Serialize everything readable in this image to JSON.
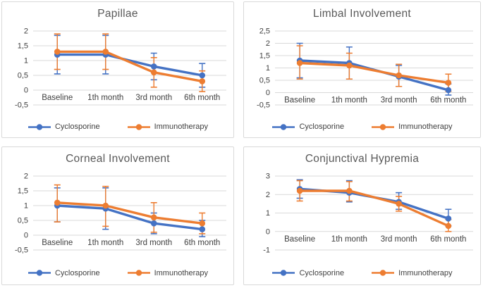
{
  "window": {
    "background": "#FFFFFF"
  },
  "colors": {
    "cyclosporine": "#4472C4",
    "immunotherapy": "#ED7D31",
    "gridline": "#D9D9D9",
    "panel_border": "#D9D9D9",
    "title_text": "#595959",
    "axis_text": "#404040"
  },
  "chart_data": [
    {
      "type": "line",
      "title": "Papillae",
      "categories": [
        "Baseline",
        "1th month",
        "3rd month",
        "6th month"
      ],
      "ylim": [
        -0.5,
        2
      ],
      "grid": true,
      "legend_position": "bottom",
      "yticks": [
        {
          "v": 2,
          "label": "2"
        },
        {
          "v": 1.5,
          "label": "1,5"
        },
        {
          "v": 1,
          "label": "1"
        },
        {
          "v": 0.5,
          "label": "0,5"
        },
        {
          "v": 0,
          "label": "0"
        },
        {
          "v": -0.5,
          "label": "-0,5"
        }
      ],
      "series": [
        {
          "name": "Cyclosporine",
          "color": "#4472C4",
          "values": [
            1.2,
            1.2,
            0.8,
            0.5
          ],
          "err_lo": [
            0.55,
            0.55,
            0.35,
            0.1
          ],
          "err_hi": [
            1.85,
            1.85,
            1.25,
            0.9
          ]
        },
        {
          "name": "Immunotherapy",
          "color": "#ED7D31",
          "values": [
            1.3,
            1.3,
            0.6,
            0.3
          ],
          "err_lo": [
            0.7,
            0.7,
            0.1,
            -0.05
          ],
          "err_hi": [
            1.9,
            1.9,
            1.1,
            0.65
          ]
        }
      ]
    },
    {
      "type": "line",
      "title": "Limbal Involvement",
      "categories": [
        "Baseline",
        "1th month",
        "3rd month",
        "6th month"
      ],
      "ylim": [
        -0.5,
        2.5
      ],
      "grid": true,
      "legend_position": "bottom",
      "yticks": [
        {
          "v": 2.5,
          "label": "2,5"
        },
        {
          "v": 2,
          "label": "2"
        },
        {
          "v": 1.5,
          "label": "1,5"
        },
        {
          "v": 1,
          "label": "1"
        },
        {
          "v": 0.5,
          "label": "0,5"
        },
        {
          "v": 0,
          "label": "0"
        },
        {
          "v": -0.5,
          "label": "-0,5"
        }
      ],
      "series": [
        {
          "name": "Cyclosporine",
          "color": "#4472C4",
          "values": [
            1.3,
            1.2,
            0.65,
            0.1
          ],
          "err_lo": [
            0.6,
            0.55,
            0.25,
            -0.1
          ],
          "err_hi": [
            2.0,
            1.85,
            1.1,
            0.35
          ]
        },
        {
          "name": "Immunotherapy",
          "color": "#ED7D31",
          "values": [
            1.2,
            1.1,
            0.7,
            0.4
          ],
          "err_lo": [
            0.55,
            0.55,
            0.25,
            0.05
          ],
          "err_hi": [
            1.9,
            1.6,
            1.15,
            0.75
          ]
        }
      ]
    },
    {
      "type": "line",
      "title": "Corneal Involvement",
      "categories": [
        "Baseline",
        "1th month",
        "3rd month",
        "6th month"
      ],
      "ylim": [
        -0.5,
        2
      ],
      "grid": true,
      "legend_position": "bottom",
      "yticks": [
        {
          "v": 2,
          "label": "2"
        },
        {
          "v": 1.5,
          "label": "1,5"
        },
        {
          "v": 1,
          "label": "1"
        },
        {
          "v": 0.5,
          "label": "0,5"
        },
        {
          "v": 0,
          "label": "0"
        },
        {
          "v": -0.5,
          "label": "-0,5"
        }
      ],
      "series": [
        {
          "name": "Cyclosporine",
          "color": "#4472C4",
          "values": [
            1.0,
            0.9,
            0.4,
            0.2
          ],
          "err_lo": [
            0.45,
            0.2,
            0.05,
            -0.05
          ],
          "err_hi": [
            1.6,
            1.6,
            0.75,
            0.5
          ]
        },
        {
          "name": "Immunotherapy",
          "color": "#ED7D31",
          "values": [
            1.1,
            1.0,
            0.6,
            0.4
          ],
          "err_lo": [
            0.45,
            0.3,
            0.1,
            0.05
          ],
          "err_hi": [
            1.7,
            1.65,
            1.1,
            0.75
          ]
        }
      ]
    },
    {
      "type": "line",
      "title": "Conjunctival Hypremia",
      "categories": [
        "Baseline",
        "1th month",
        "3rd month",
        "6th month"
      ],
      "ylim": [
        -1,
        3
      ],
      "grid": true,
      "legend_position": "bottom",
      "yticks": [
        {
          "v": 3,
          "label": "3"
        },
        {
          "v": 2,
          "label": "2"
        },
        {
          "v": 1,
          "label": "1"
        },
        {
          "v": 0,
          "label": "0"
        },
        {
          "v": -1,
          "label": "-1"
        }
      ],
      "series": [
        {
          "name": "Cyclosporine",
          "color": "#4472C4",
          "values": [
            2.3,
            2.1,
            1.6,
            0.7
          ],
          "err_lo": [
            1.8,
            1.6,
            1.2,
            0.3
          ],
          "err_hi": [
            2.8,
            2.75,
            2.1,
            1.2
          ]
        },
        {
          "name": "Immunotherapy",
          "color": "#ED7D31",
          "values": [
            2.2,
            2.2,
            1.5,
            0.3
          ],
          "err_lo": [
            1.65,
            1.65,
            1.1,
            0.0
          ],
          "err_hi": [
            2.75,
            2.7,
            1.9,
            0.65
          ]
        }
      ]
    }
  ]
}
